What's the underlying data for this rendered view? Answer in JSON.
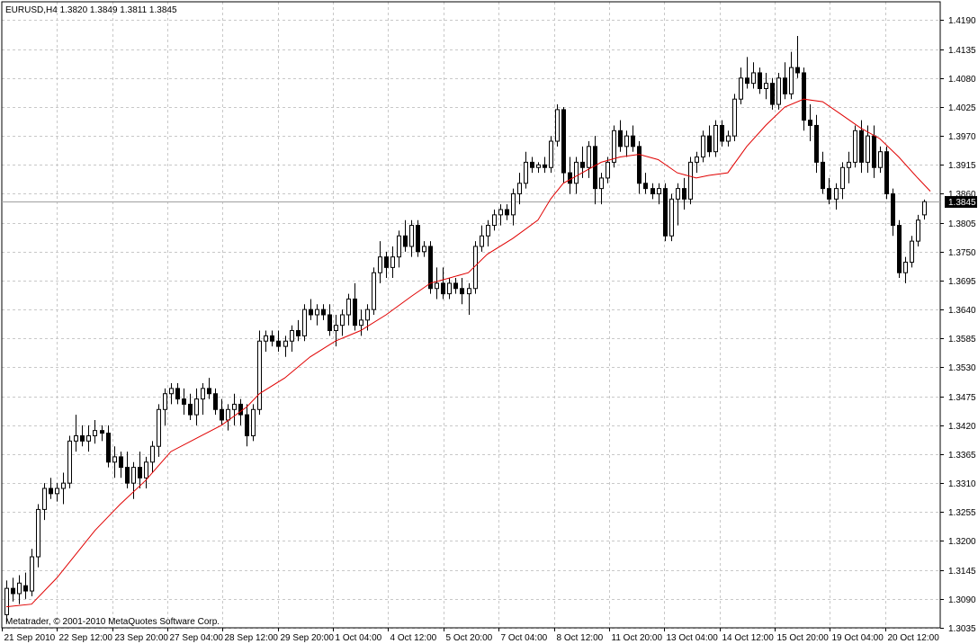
{
  "header": {
    "title": "EURUSD,H4  1.3820 1.3849 1.3811 1.3845",
    "copyright": "Metatrader, © 2001-2010 MetaQuotes Software Corp."
  },
  "current_price": "1.3845",
  "colors": {
    "background": "#ffffff",
    "grid": "#c8c8c8",
    "axis": "#000000",
    "candle_up": "#ffffff",
    "candle_down": "#000000",
    "moving_average": "#e00000",
    "bid_line": "#a0a0a0",
    "price_tag": "#000000"
  },
  "chart_data": {
    "type": "candlestick",
    "symbol": "EURUSD",
    "timeframe": "H4",
    "ohlc_readout": {
      "open": 1.382,
      "high": 1.3849,
      "low": 1.3811,
      "close": 1.3845
    },
    "ylim": [
      1.3035,
      1.4225
    ],
    "y_ticks": [
      "1.4190",
      "1.4135",
      "1.4080",
      "1.4025",
      "1.3970",
      "1.3915",
      "1.3860",
      "1.3805",
      "1.3750",
      "1.3695",
      "1.3640",
      "1.3585",
      "1.3530",
      "1.3475",
      "1.3420",
      "1.3365",
      "1.3310",
      "1.3255",
      "1.3200",
      "1.3145",
      "1.3090",
      "1.3035"
    ],
    "x_tick_labels": [
      "21 Sep 2010",
      "22 Sep 12:00",
      "23 Sep 20:00",
      "27 Sep 04:00",
      "28 Sep 12:00",
      "29 Sep 20:00",
      "1 Oct 04:00",
      "4 Oct 12:00",
      "5 Oct 20:00",
      "7 Oct 04:00",
      "8 Oct 12:00",
      "11 Oct 20:00",
      "13 Oct 04:00",
      "14 Oct 12:00",
      "15 Oct 20:00",
      "19 Oct 04:00",
      "20 Oct 12:00"
    ],
    "grid": true,
    "candles": [
      [
        1.306,
        1.3125,
        1.3045,
        1.311
      ],
      [
        1.311,
        1.313,
        1.3085,
        1.31
      ],
      [
        1.31,
        1.3135,
        1.308,
        1.312
      ],
      [
        1.3115,
        1.314,
        1.309,
        1.3105
      ],
      [
        1.3105,
        1.3185,
        1.3095,
        1.317
      ],
      [
        1.317,
        1.327,
        1.315,
        1.326
      ],
      [
        1.326,
        1.331,
        1.324,
        1.33
      ],
      [
        1.33,
        1.332,
        1.328,
        1.329
      ],
      [
        1.329,
        1.331,
        1.3275,
        1.33
      ],
      [
        1.33,
        1.333,
        1.327,
        1.331
      ],
      [
        1.331,
        1.34,
        1.33,
        1.339
      ],
      [
        1.339,
        1.344,
        1.337,
        1.34
      ],
      [
        1.34,
        1.342,
        1.338,
        1.339
      ],
      [
        1.339,
        1.342,
        1.337,
        1.34
      ],
      [
        1.34,
        1.343,
        1.3385,
        1.341
      ],
      [
        1.341,
        1.342,
        1.339,
        1.3405
      ],
      [
        1.3405,
        1.342,
        1.334,
        1.335
      ],
      [
        1.335,
        1.338,
        1.332,
        1.336
      ],
      [
        1.336,
        1.337,
        1.332,
        1.334
      ],
      [
        1.334,
        1.337,
        1.33,
        1.331
      ],
      [
        1.331,
        1.335,
        1.328,
        1.334
      ],
      [
        1.334,
        1.337,
        1.33,
        1.332
      ],
      [
        1.332,
        1.336,
        1.33,
        1.335
      ],
      [
        1.335,
        1.339,
        1.333,
        1.338
      ],
      [
        1.338,
        1.346,
        1.336,
        1.345
      ],
      [
        1.345,
        1.349,
        1.342,
        1.348
      ],
      [
        1.348,
        1.35,
        1.346,
        1.349
      ],
      [
        1.349,
        1.35,
        1.346,
        1.347
      ],
      [
        1.347,
        1.349,
        1.344,
        1.346
      ],
      [
        1.346,
        1.348,
        1.343,
        1.344
      ],
      [
        1.344,
        1.349,
        1.342,
        1.347
      ],
      [
        1.347,
        1.35,
        1.344,
        1.349
      ],
      [
        1.349,
        1.351,
        1.347,
        1.348
      ],
      [
        1.348,
        1.349,
        1.344,
        1.345
      ],
      [
        1.345,
        1.347,
        1.342,
        1.343
      ],
      [
        1.343,
        1.346,
        1.341,
        1.345
      ],
      [
        1.345,
        1.348,
        1.342,
        1.346
      ],
      [
        1.346,
        1.347,
        1.342,
        1.344
      ],
      [
        1.344,
        1.346,
        1.338,
        1.34
      ],
      [
        1.34,
        1.346,
        1.339,
        1.345
      ],
      [
        1.345,
        1.36,
        1.344,
        1.358
      ],
      [
        1.358,
        1.36,
        1.356,
        1.359
      ],
      [
        1.359,
        1.36,
        1.357,
        1.358
      ],
      [
        1.358,
        1.36,
        1.356,
        1.357
      ],
      [
        1.357,
        1.359,
        1.355,
        1.358
      ],
      [
        1.358,
        1.361,
        1.356,
        1.36
      ],
      [
        1.36,
        1.362,
        1.358,
        1.359
      ],
      [
        1.359,
        1.365,
        1.358,
        1.364
      ],
      [
        1.364,
        1.366,
        1.362,
        1.363
      ],
      [
        1.363,
        1.365,
        1.361,
        1.364
      ],
      [
        1.364,
        1.365,
        1.362,
        1.363
      ],
      [
        1.363,
        1.365,
        1.359,
        1.36
      ],
      [
        1.36,
        1.363,
        1.357,
        1.361
      ],
      [
        1.361,
        1.364,
        1.359,
        1.363
      ],
      [
        1.363,
        1.367,
        1.361,
        1.366
      ],
      [
        1.366,
        1.369,
        1.36,
        1.361
      ],
      [
        1.361,
        1.364,
        1.359,
        1.362
      ],
      [
        1.362,
        1.365,
        1.36,
        1.364
      ],
      [
        1.364,
        1.372,
        1.363,
        1.371
      ],
      [
        1.371,
        1.377,
        1.369,
        1.374
      ],
      [
        1.374,
        1.375,
        1.37,
        1.372
      ],
      [
        1.372,
        1.376,
        1.37,
        1.374
      ],
      [
        1.374,
        1.379,
        1.372,
        1.378
      ],
      [
        1.378,
        1.381,
        1.375,
        1.376
      ],
      [
        1.376,
        1.381,
        1.374,
        1.38
      ],
      [
        1.38,
        1.381,
        1.374,
        1.375
      ],
      [
        1.375,
        1.377,
        1.374,
        1.376
      ],
      [
        1.376,
        1.377,
        1.367,
        1.368
      ],
      [
        1.368,
        1.372,
        1.366,
        1.369
      ],
      [
        1.369,
        1.372,
        1.366,
        1.367
      ],
      [
        1.367,
        1.37,
        1.366,
        1.369
      ],
      [
        1.369,
        1.37,
        1.367,
        1.368
      ],
      [
        1.368,
        1.37,
        1.365,
        1.367
      ],
      [
        1.367,
        1.369,
        1.363,
        1.368
      ],
      [
        1.368,
        1.377,
        1.367,
        1.376
      ],
      [
        1.376,
        1.38,
        1.375,
        1.378
      ],
      [
        1.378,
        1.381,
        1.376,
        1.38
      ],
      [
        1.38,
        1.383,
        1.379,
        1.382
      ],
      [
        1.382,
        1.384,
        1.38,
        1.383
      ],
      [
        1.383,
        1.384,
        1.381,
        1.382
      ],
      [
        1.382,
        1.387,
        1.38,
        1.386
      ],
      [
        1.386,
        1.39,
        1.384,
        1.388
      ],
      [
        1.388,
        1.394,
        1.387,
        1.392
      ],
      [
        1.392,
        1.393,
        1.39,
        1.391
      ],
      [
        1.391,
        1.392,
        1.39,
        1.3915
      ],
      [
        1.3915,
        1.393,
        1.39,
        1.391
      ],
      [
        1.391,
        1.397,
        1.39,
        1.396
      ],
      [
        1.396,
        1.403,
        1.395,
        1.402
      ],
      [
        1.402,
        1.4025,
        1.388,
        1.39
      ],
      [
        1.39,
        1.393,
        1.386,
        1.388
      ],
      [
        1.388,
        1.393,
        1.386,
        1.392
      ],
      [
        1.392,
        1.395,
        1.389,
        1.391
      ],
      [
        1.391,
        1.396,
        1.389,
        1.395
      ],
      [
        1.395,
        1.397,
        1.384,
        1.387
      ],
      [
        1.387,
        1.39,
        1.384,
        1.389
      ],
      [
        1.389,
        1.393,
        1.388,
        1.392
      ],
      [
        1.392,
        1.399,
        1.391,
        1.398
      ],
      [
        1.398,
        1.4,
        1.394,
        1.395
      ],
      [
        1.395,
        1.398,
        1.393,
        1.397
      ],
      [
        1.397,
        1.399,
        1.394,
        1.395
      ],
      [
        1.395,
        1.396,
        1.386,
        1.388
      ],
      [
        1.388,
        1.39,
        1.386,
        1.387
      ],
      [
        1.387,
        1.388,
        1.385,
        1.386
      ],
      [
        1.386,
        1.388,
        1.384,
        1.387
      ],
      [
        1.387,
        1.388,
        1.377,
        1.378
      ],
      [
        1.378,
        1.386,
        1.377,
        1.385
      ],
      [
        1.385,
        1.388,
        1.38,
        1.387
      ],
      [
        1.387,
        1.389,
        1.383,
        1.385
      ],
      [
        1.385,
        1.393,
        1.384,
        1.392
      ],
      [
        1.392,
        1.394,
        1.39,
        1.393
      ],
      [
        1.393,
        1.398,
        1.392,
        1.397
      ],
      [
        1.397,
        1.399,
        1.393,
        1.394
      ],
      [
        1.394,
        1.4,
        1.393,
        1.399
      ],
      [
        1.399,
        1.4,
        1.395,
        1.396
      ],
      [
        1.396,
        1.398,
        1.395,
        1.397
      ],
      [
        1.397,
        1.405,
        1.396,
        1.404
      ],
      [
        1.404,
        1.41,
        1.403,
        1.408
      ],
      [
        1.408,
        1.412,
        1.406,
        1.407
      ],
      [
        1.407,
        1.411,
        1.406,
        1.409
      ],
      [
        1.409,
        1.41,
        1.405,
        1.406
      ],
      [
        1.406,
        1.409,
        1.404,
        1.407
      ],
      [
        1.407,
        1.408,
        1.402,
        1.403
      ],
      [
        1.403,
        1.409,
        1.402,
        1.408
      ],
      [
        1.408,
        1.411,
        1.404,
        1.405
      ],
      [
        1.405,
        1.413,
        1.404,
        1.41
      ],
      [
        1.41,
        1.416,
        1.408,
        1.409
      ],
      [
        1.409,
        1.41,
        1.398,
        1.4
      ],
      [
        1.4,
        1.403,
        1.396,
        1.399
      ],
      [
        1.399,
        1.401,
        1.39,
        1.392
      ],
      [
        1.392,
        1.394,
        1.386,
        1.387
      ],
      [
        1.387,
        1.389,
        1.384,
        1.385
      ],
      [
        1.385,
        1.388,
        1.383,
        1.387
      ],
      [
        1.387,
        1.392,
        1.385,
        1.391
      ],
      [
        1.391,
        1.394,
        1.388,
        1.392
      ],
      [
        1.392,
        1.399,
        1.391,
        1.398
      ],
      [
        1.398,
        1.4,
        1.39,
        1.392
      ],
      [
        1.392,
        1.399,
        1.39,
        1.397
      ],
      [
        1.397,
        1.399,
        1.389,
        1.391
      ],
      [
        1.391,
        1.395,
        1.39,
        1.394
      ],
      [
        1.394,
        1.395,
        1.385,
        1.386
      ],
      [
        1.386,
        1.387,
        1.378,
        1.38
      ],
      [
        1.38,
        1.381,
        1.37,
        1.371
      ],
      [
        1.371,
        1.374,
        1.369,
        1.373
      ],
      [
        1.373,
        1.378,
        1.372,
        1.377
      ],
      [
        1.377,
        1.382,
        1.376,
        1.381
      ],
      [
        1.382,
        1.3849,
        1.3811,
        1.3845
      ]
    ],
    "moving_average": [
      [
        0,
        1.3075
      ],
      [
        4,
        1.308
      ],
      [
        8,
        1.313
      ],
      [
        14,
        1.322
      ],
      [
        18,
        1.327
      ],
      [
        22,
        1.3315
      ],
      [
        26,
        1.337
      ],
      [
        30,
        1.3395
      ],
      [
        34,
        1.342
      ],
      [
        38,
        1.3455
      ],
      [
        40,
        1.348
      ],
      [
        44,
        1.351
      ],
      [
        48,
        1.355
      ],
      [
        52,
        1.358
      ],
      [
        56,
        1.36
      ],
      [
        60,
        1.363
      ],
      [
        64,
        1.3665
      ],
      [
        67,
        1.369
      ],
      [
        70,
        1.37
      ],
      [
        73,
        1.371
      ],
      [
        76,
        1.3745
      ],
      [
        80,
        1.3775
      ],
      [
        84,
        1.381
      ],
      [
        86,
        1.385
      ],
      [
        88,
        1.388
      ],
      [
        91,
        1.39
      ],
      [
        94,
        1.392
      ],
      [
        97,
        1.393
      ],
      [
        100,
        1.3935
      ],
      [
        103,
        1.3925
      ],
      [
        106,
        1.39
      ],
      [
        109,
        1.389
      ],
      [
        111,
        1.3895
      ],
      [
        114,
        1.39
      ],
      [
        117,
        1.395
      ],
      [
        120,
        1.399
      ],
      [
        123,
        1.4025
      ],
      [
        126,
        1.404
      ],
      [
        129,
        1.4035
      ],
      [
        132,
        1.401
      ],
      [
        135,
        1.3985
      ],
      [
        138,
        1.3965
      ],
      [
        141,
        1.393
      ],
      [
        144,
        1.389
      ],
      [
        146,
        1.3865
      ]
    ]
  }
}
